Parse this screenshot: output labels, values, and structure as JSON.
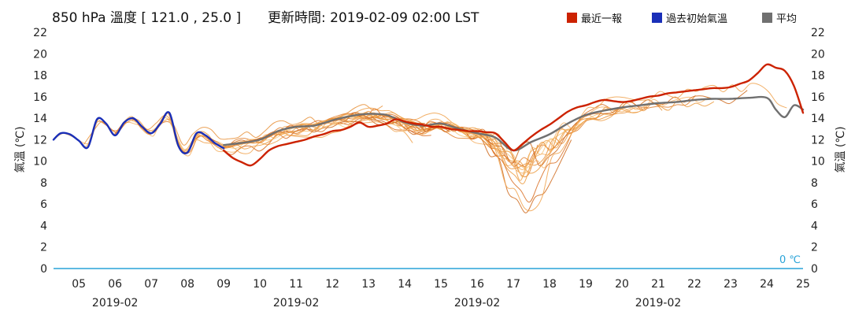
{
  "title": "850 hPa 溫度 [ 121.0 , 25.0 ]",
  "update_label": "更新時間: 2019-02-09 02:00 LST",
  "legend": [
    {
      "label": "最近一報",
      "color": "#cc2200"
    },
    {
      "label": "過去初始氣溫",
      "color": "#1a2fb8"
    },
    {
      "label": "平均",
      "color": "#707070"
    }
  ],
  "zero_line_label": "0 ℃",
  "chart_data": {
    "type": "line",
    "ylabel_left": "氣溫 (℃)",
    "ylabel_right": "氣溫 (℃)",
    "ylim": [
      0,
      22
    ],
    "yticks": [
      0,
      2,
      4,
      6,
      8,
      10,
      12,
      14,
      16,
      18,
      20,
      22
    ],
    "xlim": [
      4.3,
      25
    ],
    "xticks": [
      "05",
      "06",
      "07",
      "08",
      "09",
      "10",
      "11",
      "12",
      "13",
      "14",
      "15",
      "16",
      "17",
      "18",
      "19",
      "20",
      "21",
      "22",
      "23",
      "24",
      "25"
    ],
    "month_labels": [
      {
        "text": "2019-02",
        "day": 6
      },
      {
        "text": "2019-02",
        "day": 11
      },
      {
        "text": "2019-02",
        "day": 16
      },
      {
        "text": "2019-02",
        "day": 21
      }
    ],
    "grid": false,
    "legend_position": "top-right",
    "series": [
      {
        "name": "最近一報",
        "color": "#cc2200",
        "x": [
          9.0,
          9.25,
          9.5,
          9.75,
          10.0,
          10.25,
          10.5,
          10.75,
          11.0,
          11.25,
          11.5,
          11.75,
          12.0,
          12.25,
          12.5,
          12.75,
          13.0,
          13.25,
          13.5,
          13.75,
          14.0,
          14.25,
          14.5,
          14.75,
          15.0,
          15.25,
          15.5,
          15.75,
          16.0,
          16.25,
          16.5,
          16.75,
          17.0,
          17.25,
          17.5,
          17.75,
          18.0,
          18.25,
          18.5,
          18.75,
          19.0,
          19.25,
          19.5,
          19.75,
          20.0,
          20.25,
          20.5,
          20.75,
          21.0,
          21.25,
          21.5,
          21.75,
          22.0,
          22.25,
          22.5,
          22.75,
          23.0,
          23.25,
          23.5,
          23.75,
          24.0,
          24.25,
          24.5,
          24.75,
          25.0
        ],
        "y": [
          11.0,
          10.3,
          9.9,
          9.6,
          10.2,
          11.0,
          11.4,
          11.6,
          11.8,
          12.0,
          12.3,
          12.5,
          12.8,
          12.9,
          13.2,
          13.6,
          13.2,
          13.3,
          13.5,
          13.9,
          13.7,
          13.5,
          13.4,
          13.2,
          13.2,
          13.0,
          12.9,
          12.8,
          12.8,
          12.7,
          12.6,
          11.8,
          11.0,
          11.6,
          12.3,
          12.9,
          13.4,
          14.0,
          14.6,
          15.0,
          15.2,
          15.5,
          15.7,
          15.6,
          15.5,
          15.6,
          15.8,
          16.0,
          16.1,
          16.3,
          16.4,
          16.5,
          16.6,
          16.7,
          16.8,
          16.8,
          16.9,
          17.2,
          17.5,
          18.2,
          19.0,
          18.7,
          18.4,
          17.0,
          14.5
        ]
      },
      {
        "name": "過去初始氣溫",
        "color": "#1a2fb8",
        "x": [
          4.3,
          4.5,
          4.75,
          5.0,
          5.25,
          5.5,
          5.75,
          6.0,
          6.25,
          6.5,
          6.75,
          7.0,
          7.25,
          7.5,
          7.75,
          8.0,
          8.25,
          8.5,
          8.75,
          9.0
        ],
        "y": [
          12.0,
          12.6,
          12.5,
          11.9,
          11.3,
          13.9,
          13.5,
          12.4,
          13.6,
          14.0,
          13.2,
          12.6,
          13.5,
          14.5,
          11.4,
          10.8,
          12.6,
          12.4,
          11.7,
          11.2
        ]
      },
      {
        "name": "平均",
        "color": "#707070",
        "x": [
          9.0,
          9.5,
          10.0,
          10.5,
          11.0,
          11.5,
          12.0,
          12.5,
          13.0,
          13.5,
          14.0,
          14.5,
          15.0,
          15.5,
          16.0,
          16.5,
          17.0,
          17.5,
          18.0,
          18.5,
          19.0,
          19.5,
          20.0,
          20.5,
          21.0,
          21.5,
          22.0,
          22.5,
          23.0,
          23.5,
          24.0,
          24.25,
          24.5,
          24.75,
          25.0
        ],
        "y": [
          11.5,
          11.7,
          12.0,
          12.8,
          13.2,
          13.3,
          13.8,
          14.2,
          14.4,
          14.3,
          13.6,
          13.3,
          13.5,
          13.0,
          12.6,
          12.2,
          11.0,
          11.8,
          12.5,
          13.5,
          14.3,
          14.7,
          15.0,
          15.2,
          15.4,
          15.5,
          15.7,
          15.8,
          15.8,
          15.9,
          15.9,
          14.8,
          14.1,
          15.2,
          14.8
        ]
      }
    ]
  }
}
